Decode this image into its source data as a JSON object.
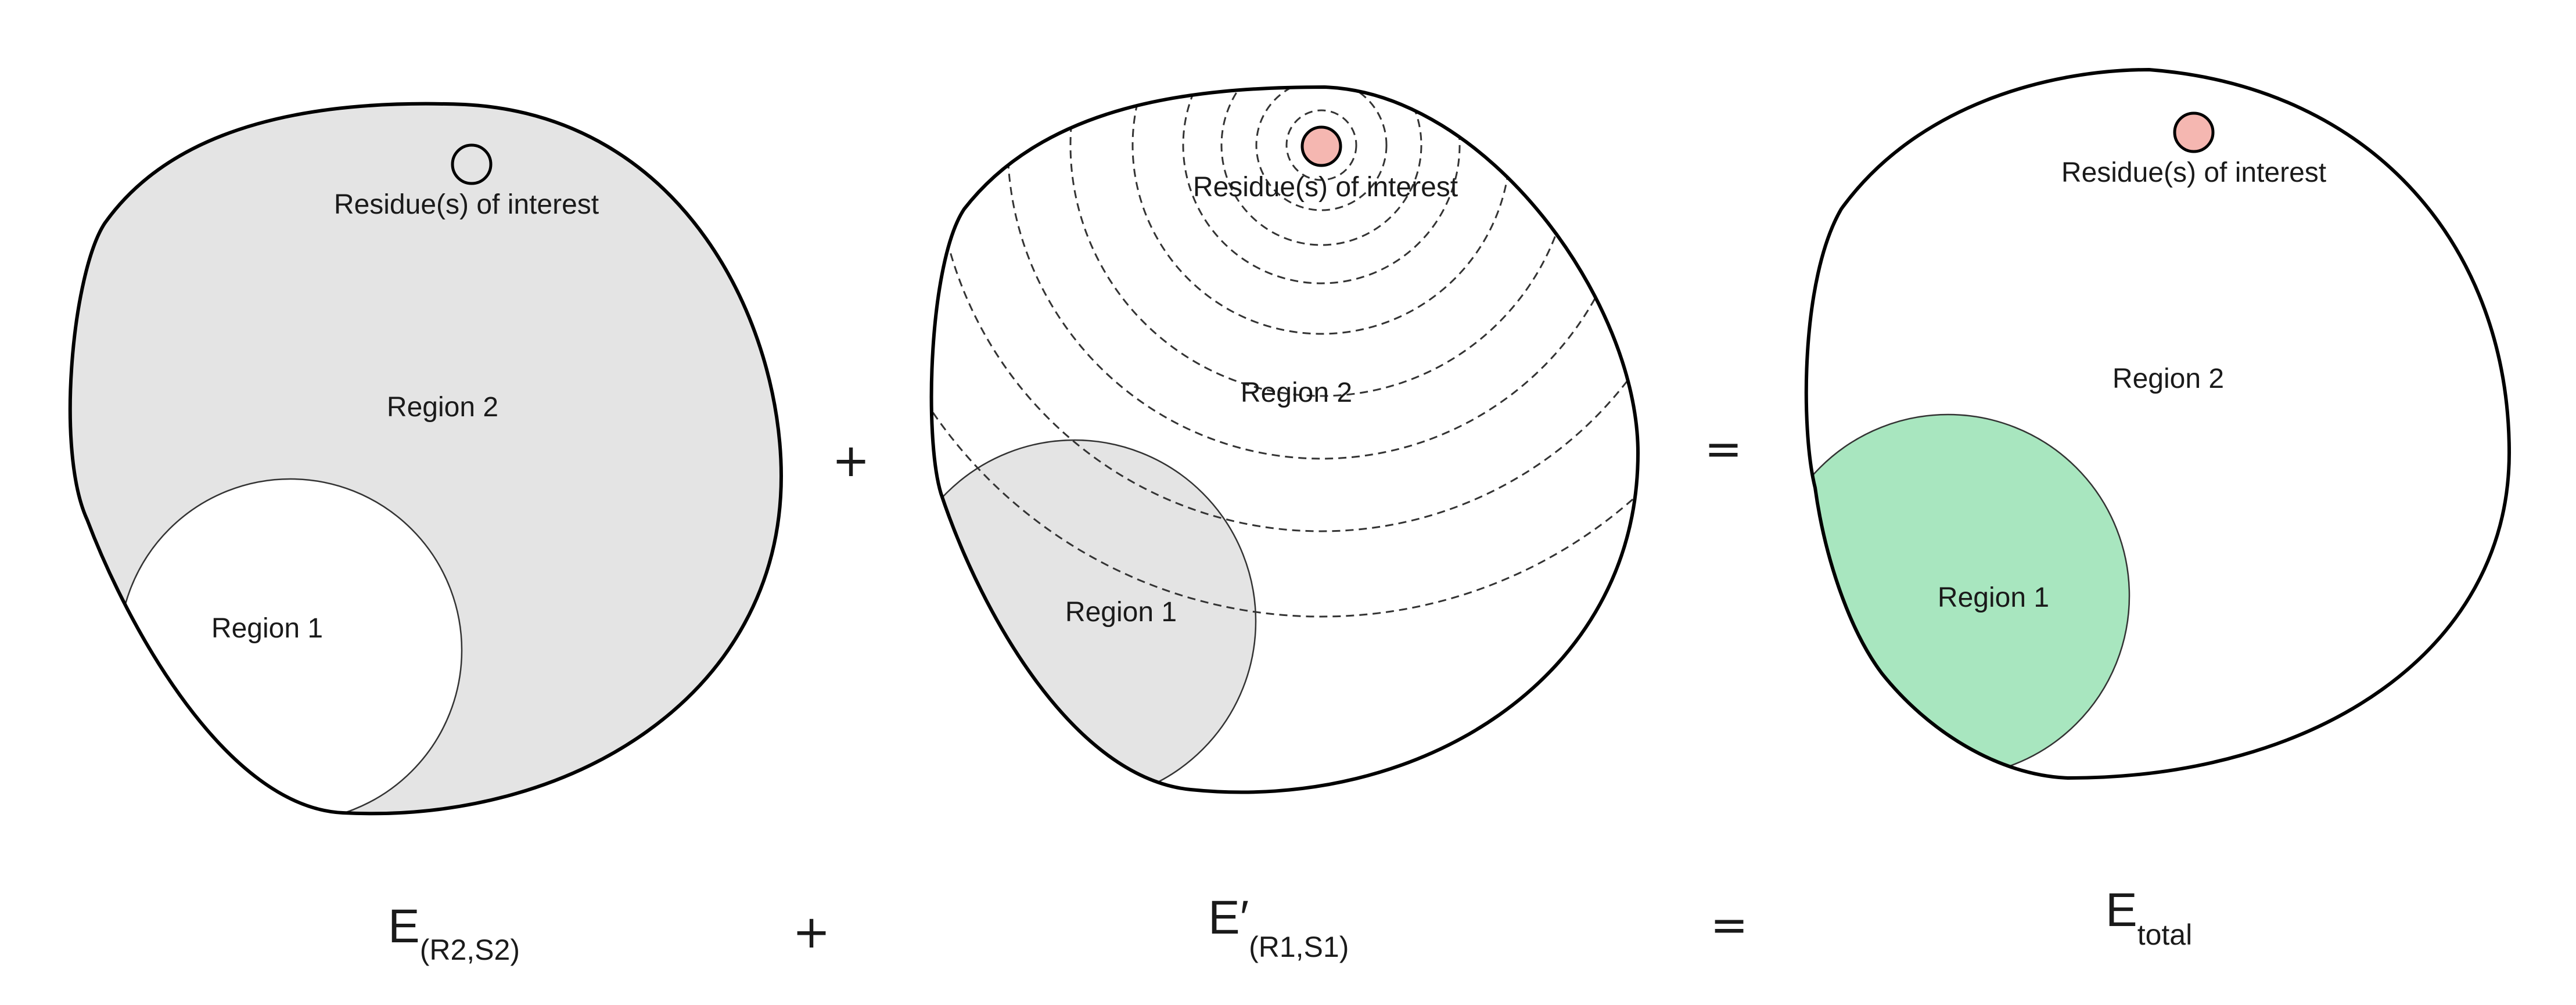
{
  "colors": {
    "shaded_region": "#e4e4e4",
    "residue_fill": "#f5b7b1",
    "highlight_region": "#a8e6bf",
    "outline": "#000000"
  },
  "panels": [
    {
      "residue_label": "Residue(s) of interest",
      "region_1_label": "Region 1",
      "region_2_label": "Region 2",
      "shaded": "region 2",
      "residue_marker": "empty circle"
    },
    {
      "residue_label": "Residue(s) of interest",
      "region_1_label": "Region 1",
      "region_2_label": "Region 2",
      "shaded": "region 1",
      "residue_marker": "filled circle",
      "dashed_contours": 9
    },
    {
      "residue_label": "Residue(s) of interest",
      "region_1_label": "Region 1",
      "region_2_label": "Region 2",
      "shaded": "region 1 (green)",
      "residue_marker": "filled circle"
    }
  ],
  "operators": {
    "plus": "+",
    "equals": "="
  },
  "equation": {
    "term1_main": "E",
    "term1_sub": "(R2,S2)",
    "op1": "+",
    "term2_main": "E′",
    "term2_sub": "(R1,S1)",
    "op2": "=",
    "result_main": "E",
    "result_sub": "total"
  }
}
